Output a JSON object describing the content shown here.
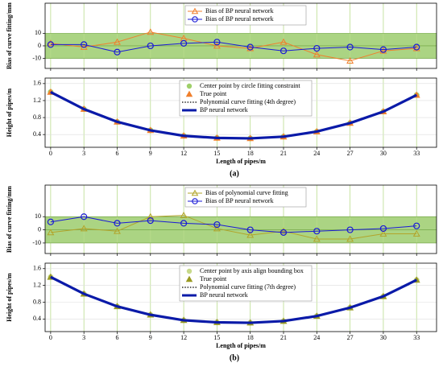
{
  "chart_data": [
    {
      "type": "line",
      "ylabel": "Bias of curve fitting/mm",
      "x": [
        0,
        3,
        6,
        9,
        12,
        15,
        18,
        21,
        24,
        27,
        30,
        33
      ],
      "xlim": [
        -0.5,
        34.8
      ],
      "xticks": [
        0,
        3,
        6,
        9,
        12,
        15,
        18,
        21,
        24,
        27,
        30,
        33
      ],
      "show_xtick_labels": false,
      "ylim": [
        -18,
        34
      ],
      "yticks": [
        -10,
        0,
        10
      ],
      "band": [
        -10,
        10
      ],
      "band_color": "#8fc65a",
      "legend": "upper center",
      "series": [
        {
          "name": "Bias of BP neural network",
          "color": "#f07f2c",
          "marker": "triangle",
          "line": "solid",
          "values": [
            2,
            -1,
            3,
            11,
            6,
            0,
            -2,
            3,
            -7,
            -12,
            -4,
            -2
          ]
        },
        {
          "name": "Bias of BP neural network",
          "color": "#1a1ad6",
          "marker": "circle",
          "line": "solid",
          "values": [
            1,
            1,
            -5,
            0,
            2,
            3,
            -1,
            -4,
            -2,
            -1,
            -3,
            -1
          ]
        }
      ]
    },
    {
      "type": "line",
      "ylabel": "Height of pipes/m",
      "xlabel": "Length of pipes/m",
      "caption": "(a)",
      "x": [
        0,
        3,
        6,
        9,
        12,
        15,
        18,
        21,
        24,
        27,
        30,
        33
      ],
      "xlim": [
        -0.5,
        34.8
      ],
      "xticks": [
        0,
        3,
        6,
        9,
        12,
        15,
        18,
        21,
        24,
        27,
        30,
        33
      ],
      "show_xtick_labels": true,
      "ylim": [
        0.1,
        1.73
      ],
      "yticks": [
        0.4,
        0.8,
        1.2,
        1.6
      ],
      "legend": "upper center",
      "series": [
        {
          "name": "Center point by circle fitting constraint",
          "color": "#9fd06a",
          "marker": "dot",
          "line": "none",
          "values": [
            1.4,
            1.0,
            0.7,
            0.5,
            0.37,
            0.32,
            0.31,
            0.35,
            0.47,
            0.67,
            0.94,
            1.33
          ]
        },
        {
          "name": "True point",
          "color": "#f07f2c",
          "marker": "triangle",
          "line": "none",
          "values": [
            1.4,
            1.0,
            0.7,
            0.5,
            0.37,
            0.32,
            0.31,
            0.35,
            0.47,
            0.67,
            0.94,
            1.33
          ]
        },
        {
          "name": "Polynomial curve fitting (4th degree)",
          "color": "#000000",
          "marker": "none",
          "line": "dotted",
          "values": [
            1.4,
            1.0,
            0.7,
            0.5,
            0.37,
            0.32,
            0.31,
            0.35,
            0.47,
            0.67,
            0.94,
            1.33
          ]
        },
        {
          "name": "BP neural network",
          "color": "#0a1aa8",
          "marker": "none",
          "line": "thick",
          "values": [
            1.4,
            1.0,
            0.7,
            0.5,
            0.37,
            0.32,
            0.31,
            0.35,
            0.47,
            0.67,
            0.94,
            1.33
          ]
        }
      ]
    },
    {
      "type": "line",
      "ylabel": "Bias of curve fitting/mm",
      "x": [
        0,
        3,
        6,
        9,
        12,
        15,
        18,
        21,
        24,
        27,
        30,
        33
      ],
      "xlim": [
        -0.5,
        34.8
      ],
      "xticks": [
        0,
        3,
        6,
        9,
        12,
        15,
        18,
        21,
        24,
        27,
        30,
        33
      ],
      "show_xtick_labels": false,
      "ylim": [
        -18,
        34
      ],
      "yticks": [
        -10,
        0,
        10
      ],
      "band": [
        -10,
        10
      ],
      "band_color": "#8fc65a",
      "legend": "upper center",
      "series": [
        {
          "name": "Bias of polynomial curve fitting",
          "color": "#b2a42a",
          "marker": "triangle",
          "line": "solid",
          "values": [
            -2,
            1,
            -1,
            10,
            11,
            1,
            -4,
            -1,
            -7,
            -7,
            -3,
            -3
          ]
        },
        {
          "name": "Bias of BP neural network",
          "color": "#1a1ad6",
          "marker": "circle",
          "line": "solid",
          "values": [
            6,
            10,
            5,
            7,
            5,
            4,
            0,
            -2,
            -1,
            0,
            1,
            3
          ]
        }
      ]
    },
    {
      "type": "line",
      "ylabel": "Height of pipes/m",
      "xlabel": "Length of pipes/m",
      "caption": "(b)",
      "x": [
        0,
        3,
        6,
        9,
        12,
        15,
        18,
        21,
        24,
        27,
        30,
        33
      ],
      "xlim": [
        -0.5,
        34.8
      ],
      "xticks": [
        0,
        3,
        6,
        9,
        12,
        15,
        18,
        21,
        24,
        27,
        30,
        33
      ],
      "show_xtick_labels": true,
      "ylim": [
        0.1,
        1.73
      ],
      "yticks": [
        0.4,
        0.8,
        1.2,
        1.6
      ],
      "legend": "upper center",
      "series": [
        {
          "name": "Center point by axis align bounding box",
          "color": "#c7d98a",
          "marker": "dot",
          "line": "none",
          "values": [
            1.4,
            1.0,
            0.7,
            0.5,
            0.37,
            0.32,
            0.31,
            0.35,
            0.47,
            0.67,
            0.94,
            1.33
          ]
        },
        {
          "name": "True point",
          "color": "#9a9a22",
          "marker": "triangle",
          "line": "none",
          "values": [
            1.4,
            1.0,
            0.7,
            0.5,
            0.37,
            0.32,
            0.31,
            0.35,
            0.47,
            0.67,
            0.94,
            1.33
          ]
        },
        {
          "name": "Polynomial curve fitting (7th degree)",
          "color": "#000000",
          "marker": "none",
          "line": "dotted",
          "values": [
            1.4,
            1.0,
            0.7,
            0.5,
            0.37,
            0.32,
            0.31,
            0.35,
            0.47,
            0.67,
            0.94,
            1.33
          ]
        },
        {
          "name": "BP neural network",
          "color": "#0a1aa8",
          "marker": "none",
          "line": "thick",
          "values": [
            1.4,
            1.0,
            0.7,
            0.5,
            0.37,
            0.32,
            0.31,
            0.35,
            0.47,
            0.67,
            0.94,
            1.33
          ]
        }
      ]
    }
  ]
}
